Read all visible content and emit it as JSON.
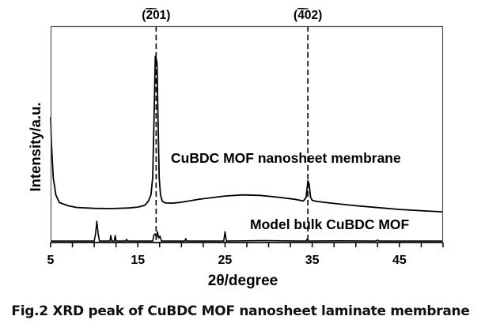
{
  "chart_data": {
    "type": "line",
    "title": "",
    "xlabel": "2θ/degree",
    "ylabel": "Intensity/a.u.",
    "xlim": [
      5,
      50
    ],
    "ylim": [
      0,
      100
    ],
    "xticks": [
      5,
      15,
      25,
      35,
      45
    ],
    "grid": false,
    "reference_lines": [
      {
        "x": 17.1,
        "label": "(2̄01)",
        "label_main": "(",
        "label_digit_bar": "2",
        "label_rest": "01)"
      },
      {
        "x": 34.5,
        "label": "(4̄02)",
        "label_main": "(",
        "label_digit_bar": "4",
        "label_rest": "02)"
      }
    ],
    "series": [
      {
        "name": "CuBDC MOF nanosheet membrane",
        "x": [
          5.0,
          5.1,
          5.3,
          5.6,
          6.0,
          7.0,
          8.0,
          10.0,
          12.0,
          14.0,
          15.0,
          15.8,
          16.2,
          16.5,
          16.7,
          16.85,
          17.0,
          17.1,
          17.2,
          17.3,
          17.45,
          17.6,
          17.8,
          18.2,
          19.0,
          20.0,
          22.0,
          25.0,
          27.0,
          29.0,
          31.0,
          33.0,
          34.0,
          34.3,
          34.5,
          34.65,
          34.8,
          35.0,
          35.5,
          37.0,
          40.0,
          43.0,
          45.0,
          48.0,
          50.0
        ],
        "y": [
          58,
          45,
          30,
          22,
          18.5,
          17,
          16.2,
          15.8,
          15.7,
          16,
          16.4,
          17.2,
          19,
          22,
          30,
          55,
          86,
          85,
          83,
          60,
          30,
          22,
          19,
          18.3,
          18.2,
          18.6,
          20,
          21.5,
          22,
          21.8,
          21,
          20,
          19.2,
          21,
          28.5,
          27,
          21,
          19.5,
          19,
          18.3,
          17,
          16,
          15.3,
          14.6,
          14.2
        ]
      },
      {
        "name": "Model bulk CuBDC MOF",
        "x": [
          5.0,
          10.0,
          10.15,
          10.3,
          10.45,
          10.6,
          11.8,
          11.9,
          12.0,
          12.3,
          12.4,
          12.5,
          13.6,
          13.7,
          13.8,
          16.7,
          16.85,
          17.0,
          17.15,
          17.25,
          17.4,
          17.55,
          17.7,
          20.4,
          20.5,
          20.6,
          24.85,
          25.0,
          25.15,
          29.5,
          34.3,
          34.4,
          34.5,
          38.0,
          42.3,
          42.5,
          42.7,
          50.0
        ],
        "y": [
          0.7,
          0.7,
          4,
          9.8,
          4,
          0.7,
          0.7,
          3.3,
          0.7,
          0.7,
          3.3,
          0.7,
          0.7,
          1.5,
          0.7,
          0.7,
          3.5,
          4,
          2.5,
          5,
          2,
          3,
          0.7,
          0.7,
          1.8,
          0.7,
          0.7,
          5,
          0.7,
          0.9,
          0.7,
          1.5,
          0.7,
          0.8,
          0.7,
          1.1,
          0.7,
          0.7
        ]
      }
    ],
    "annotations": [
      {
        "text": "CuBDC MOF nanosheet membrane",
        "series": 0
      },
      {
        "text": "Model bulk CuBDC MOF",
        "series": 1
      }
    ]
  },
  "caption": "Fig.2 XRD peak of CuBDC MOF nanosheet laminate membrane"
}
